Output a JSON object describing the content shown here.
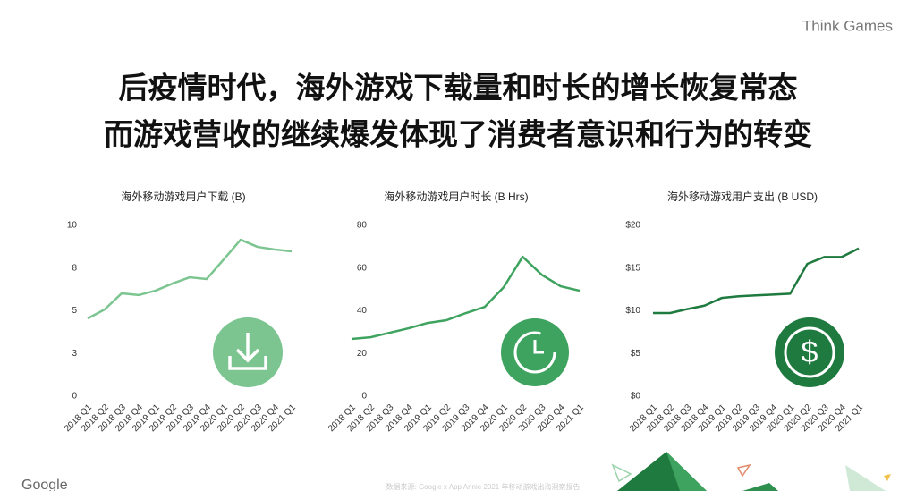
{
  "brand": "Think Games",
  "title_lines": [
    "后疫情时代，海外游戏下载量和时长的增长恢复常态",
    "而游戏营收的继续爆发体现了消费者意识和行为的转变"
  ],
  "footer_logo": "Google",
  "source": "数据来源: Google x App Annie 2021 年移动游戏出海洞察报告",
  "chart_data": [
    {
      "type": "line",
      "title": "海外移动游戏用户下载 (B)",
      "categories": [
        "2018 Q1",
        "2018 Q2",
        "2018 Q3",
        "2018 Q4",
        "2019 Q1",
        "2019 Q2",
        "2019 Q3",
        "2019 Q4",
        "2020 Q1",
        "2020 Q2",
        "2020 Q3",
        "2020 Q4",
        "2021 Q1"
      ],
      "values": [
        4.55,
        5.08,
        6.02,
        5.92,
        6.18,
        6.6,
        6.96,
        6.86,
        8.0,
        9.16,
        8.74,
        8.59,
        8.48
      ],
      "color": "#7cc590",
      "ylim": [
        0,
        10
      ],
      "yticks": [
        0,
        {
          "value": 2.5,
          "label": "3"
        },
        5,
        {
          "value": 7.5,
          "label": "8"
        },
        10
      ],
      "grid": false
    },
    {
      "type": "line",
      "title": "海外移动游戏用户时长 (B Hrs)",
      "categories": [
        "2018 Q1",
        "2018 Q2",
        "2018 Q3",
        "2018 Q4",
        "2019 Q1",
        "2019 Q2",
        "2019 Q3",
        "2019 Q4",
        "2020 Q1",
        "2020 Q2",
        "2020 Q3",
        "2020 Q4",
        "2021 Q1"
      ],
      "values": [
        26.8,
        27.6,
        29.7,
        31.8,
        34.3,
        35.6,
        38.9,
        41.8,
        51,
        65.3,
        56.9,
        51.5,
        49.4
      ],
      "color": "#3ea35e",
      "ylim": [
        0,
        80
      ],
      "yticks": [
        0,
        20,
        40,
        60,
        80
      ],
      "grid": false
    },
    {
      "type": "line",
      "title": "海外移动游戏用户支出 (B USD)",
      "categories": [
        "2018 Q1",
        "2018 Q2",
        "2018 Q3",
        "2018 Q4",
        "2019 Q1",
        "2019 Q2",
        "2019 Q3",
        "2019 Q4",
        "2020 Q1",
        "2020 Q2",
        "2020 Q3",
        "2020 Q4",
        "2021 Q1"
      ],
      "values": [
        9.74,
        9.74,
        10.2,
        10.6,
        11.5,
        11.7,
        11.8,
        11.9,
        12.0,
        15.5,
        16.3,
        16.3,
        17.3
      ],
      "color": "#1e7a3e",
      "ylim": [
        0,
        20
      ],
      "yticks": [
        {
          "value": 0,
          "label": "$0"
        },
        {
          "value": 5,
          "label": "$5"
        },
        {
          "value": 10,
          "label": "$10"
        },
        {
          "value": 15,
          "label": "$15"
        },
        {
          "value": 20,
          "label": "$20"
        }
      ],
      "grid": false
    }
  ]
}
